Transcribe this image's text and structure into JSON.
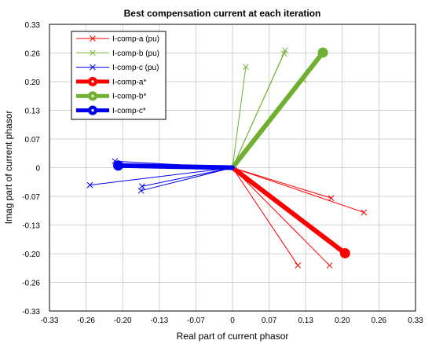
{
  "chart_data": {
    "type": "line",
    "title": "Best compensation current at each iteration",
    "xlabel": "Real part of current phasor",
    "ylabel": "Imag part of current phasor",
    "xlim": [
      -0.33,
      0.33
    ],
    "ylim": [
      -0.33,
      0.33
    ],
    "x_ticks": [
      "-0.33",
      "-0.26",
      "-0.20",
      "-0.13",
      "-0.07",
      "0",
      "0.07",
      "0.13",
      "0.20",
      "0.26",
      "0.33"
    ],
    "y_ticks": [
      "0.33",
      "0.26",
      "0.20",
      "0.13",
      "0.07",
      "0",
      "-0.07",
      "-0.13",
      "-0.20",
      "-0.26",
      "-0.33"
    ],
    "grid": true,
    "legend_position": "top-left",
    "series": [
      {
        "name": "I-comp-a (pu)",
        "color": "#ff0000",
        "marker": "x",
        "style": "thin",
        "points": [
          [
            0.175,
            -0.225
          ],
          [
            0.118,
            -0.225
          ],
          [
            0.237,
            -0.103
          ],
          [
            0.178,
            -0.07
          ]
        ]
      },
      {
        "name": "I-comp-b (pu)",
        "color": "#70b030",
        "marker": "x",
        "style": "thin",
        "points": [
          [
            0.093,
            0.263
          ],
          [
            0.128,
            0.202
          ],
          [
            0.024,
            0.232
          ],
          [
            0.095,
            0.27
          ]
        ]
      },
      {
        "name": "I-comp-c (pu)",
        "color": "#0000ee",
        "marker": "x",
        "style": "thin",
        "points": [
          [
            -0.212,
            0.015
          ],
          [
            -0.163,
            -0.043
          ],
          [
            -0.165,
            -0.053
          ],
          [
            -0.257,
            -0.04
          ]
        ]
      },
      {
        "name": "I-comp-a*",
        "color": "#ff0000",
        "marker": "o",
        "style": "thick",
        "points": [
          [
            0.203,
            -0.197
          ]
        ]
      },
      {
        "name": "I-comp-b*",
        "color": "#70b030",
        "marker": "o",
        "style": "thick",
        "points": [
          [
            0.163,
            0.265
          ]
        ]
      },
      {
        "name": "I-comp-c*",
        "color": "#0000ee",
        "marker": "o",
        "style": "thick",
        "points": [
          [
            -0.206,
            0.005
          ]
        ]
      }
    ]
  }
}
